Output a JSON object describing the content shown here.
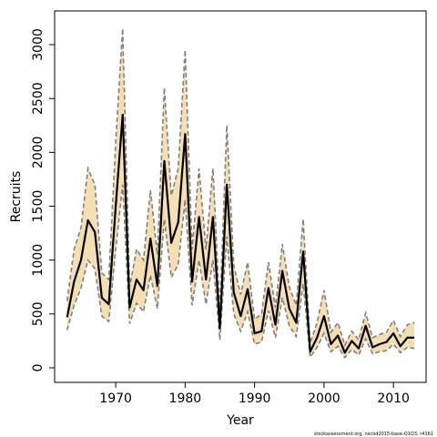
{
  "chart_data": {
    "type": "line",
    "xlabel": "Year",
    "ylabel": "Recruits",
    "footnote": "stockassessment.org, nscod2015-base-Q1Q3, r4161",
    "x": [
      1963,
      1964,
      1965,
      1966,
      1967,
      1968,
      1969,
      1970,
      1971,
      1972,
      1973,
      1974,
      1975,
      1976,
      1977,
      1978,
      1979,
      1980,
      1981,
      1982,
      1983,
      1984,
      1985,
      1986,
      1987,
      1988,
      1989,
      1990,
      1991,
      1992,
      1993,
      1994,
      1995,
      1996,
      1997,
      1998,
      1999,
      2000,
      2001,
      2002,
      2003,
      2004,
      2005,
      2006,
      2007,
      2008,
      2009,
      2010,
      2011,
      2012,
      2013
    ],
    "series": [
      {
        "color": "#000000",
        "values": [
          470,
          800,
          1000,
          1370,
          1260,
          650,
          590,
          1500,
          2350,
          560,
          820,
          720,
          1200,
          760,
          1920,
          1160,
          1350,
          2170,
          800,
          1400,
          820,
          1400,
          370,
          1700,
          700,
          480,
          730,
          320,
          340,
          740,
          400,
          900,
          550,
          420,
          1080,
          150,
          280,
          480,
          220,
          300,
          140,
          250,
          180,
          390,
          190,
          220,
          240,
          320,
          200,
          280,
          280
        ]
      }
    ],
    "band": {
      "color": "#f5deb3",
      "line_color": "#808080",
      "upper": [
        620,
        1100,
        1300,
        1850,
        1700,
        880,
        820,
        2100,
        3150,
        750,
        1100,
        1000,
        1650,
        1050,
        2600,
        1600,
        1850,
        2950,
        1100,
        1850,
        1100,
        1850,
        520,
        2250,
        950,
        680,
        980,
        450,
        500,
        980,
        560,
        1150,
        750,
        580,
        1380,
        230,
        420,
        720,
        330,
        420,
        210,
        340,
        260,
        510,
        280,
        310,
        330,
        440,
        290,
        400,
        420
      ],
      "lower": [
        350,
        580,
        740,
        1000,
        920,
        480,
        430,
        1100,
        1700,
        410,
        600,
        520,
        860,
        550,
        1380,
        840,
        960,
        1560,
        580,
        1000,
        590,
        1000,
        260,
        1220,
        500,
        340,
        520,
        220,
        240,
        530,
        280,
        650,
        390,
        290,
        780,
        100,
        190,
        320,
        150,
        200,
        95,
        170,
        120,
        270,
        130,
        150,
        160,
        220,
        140,
        190,
        180
      ]
    },
    "xlim": [
      1961.2,
      2014.7
    ],
    "ylim": [
      -135,
      3313
    ],
    "xticks": [
      1970,
      1980,
      1990,
      2000,
      2010
    ],
    "yticks": [
      0,
      500,
      1000,
      1500,
      2000,
      2500,
      3000
    ]
  }
}
